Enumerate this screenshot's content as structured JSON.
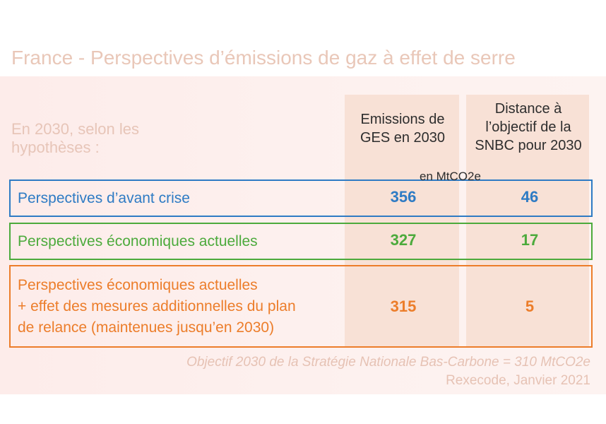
{
  "title": "France - Perspectives d’émissions de gaz à effet de serre",
  "subtitle": [
    "En 2030, selon les",
    "hypothèses :"
  ],
  "columns": {
    "emissions": [
      "Emissions de",
      "GES en 2030"
    ],
    "distance": [
      "Distance à",
      "l’objectif de la",
      "SNBC pour 2030"
    ]
  },
  "unit": "en MtCO2e",
  "rows": [
    {
      "label": [
        "Perspectives d’avant crise"
      ],
      "emissions": "356",
      "distance": "46",
      "color": "#2e7bc4"
    },
    {
      "label": [
        "Perspectives économiques actuelles"
      ],
      "emissions": "327",
      "distance": "17",
      "color": "#4caa3c"
    },
    {
      "label": [
        "Perspectives économiques actuelles",
        "+ effet des mesures additionnelles du plan",
        "de relance (maintenues jusqu’en 2030)"
      ],
      "emissions": "315",
      "distance": "5",
      "color": "#ec7d2a"
    }
  ],
  "footer": {
    "objective": "Objectif 2030 de la Stratégie Nationale Bas-Carbone = 310 MtCO2e",
    "source": "Rexecode, Janvier 2021"
  }
}
